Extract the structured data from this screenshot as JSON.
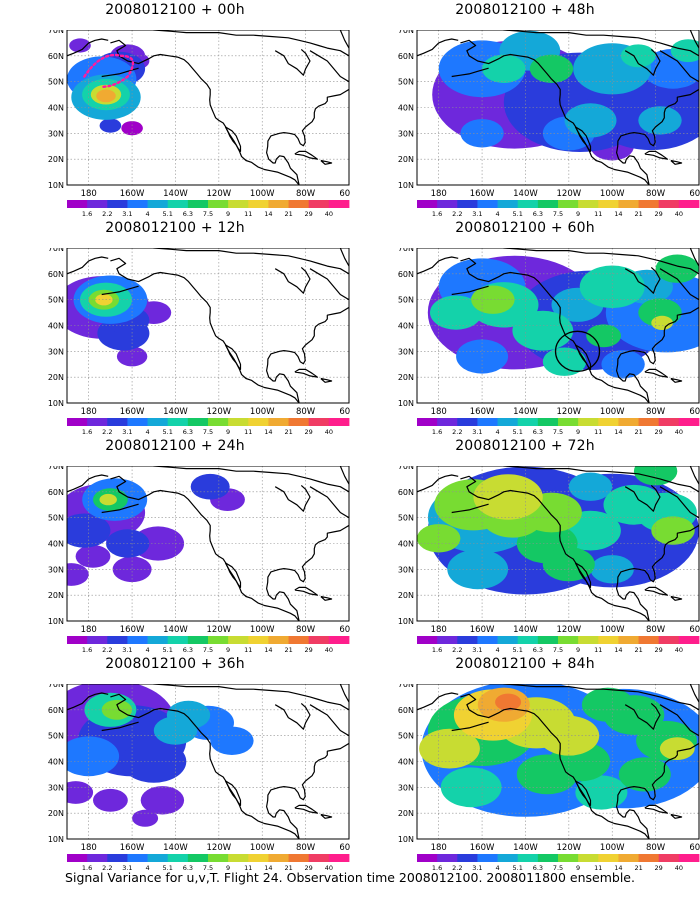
{
  "footer": "Signal Variance for u,v,T. Flight 24. Observation time 2008012100. 2008011800 ensemble.",
  "axes": {
    "lat_labels": [
      "70N",
      "60N",
      "50N",
      "40N",
      "30N",
      "20N",
      "10N"
    ],
    "lon_labels": [
      "180",
      "160W",
      "140W",
      "120W",
      "100W",
      "80W",
      "60W"
    ]
  },
  "colorbar": {
    "levels": [
      "1.6",
      "2.2",
      "3.1",
      "4",
      "5.1",
      "6.3",
      "7.5",
      "9",
      "11",
      "14",
      "21",
      "29",
      "40"
    ],
    "colors": [
      "#a000c8",
      "#6e28dc",
      "#2a3cdc",
      "#1e78ff",
      "#14a8d8",
      "#14d2aa",
      "#14c864",
      "#78dc32",
      "#c8dc32",
      "#f0d232",
      "#f0aa32",
      "#f07832",
      "#f03c64",
      "#ff1e8c"
    ]
  },
  "panels": [
    {
      "title": "2008012100 + 00h",
      "lead_h": 0
    },
    {
      "title": "2008012100 + 48h",
      "lead_h": 48
    },
    {
      "title": "2008012100 + 12h",
      "lead_h": 12
    },
    {
      "title": "2008012100 + 60h",
      "lead_h": 60
    },
    {
      "title": "2008012100 + 24h",
      "lead_h": 24
    },
    {
      "title": "2008012100 + 72h",
      "lead_h": 72
    },
    {
      "title": "2008012100 + 36h",
      "lead_h": 36
    },
    {
      "title": "2008012100 + 84h",
      "lead_h": 84
    }
  ]
}
